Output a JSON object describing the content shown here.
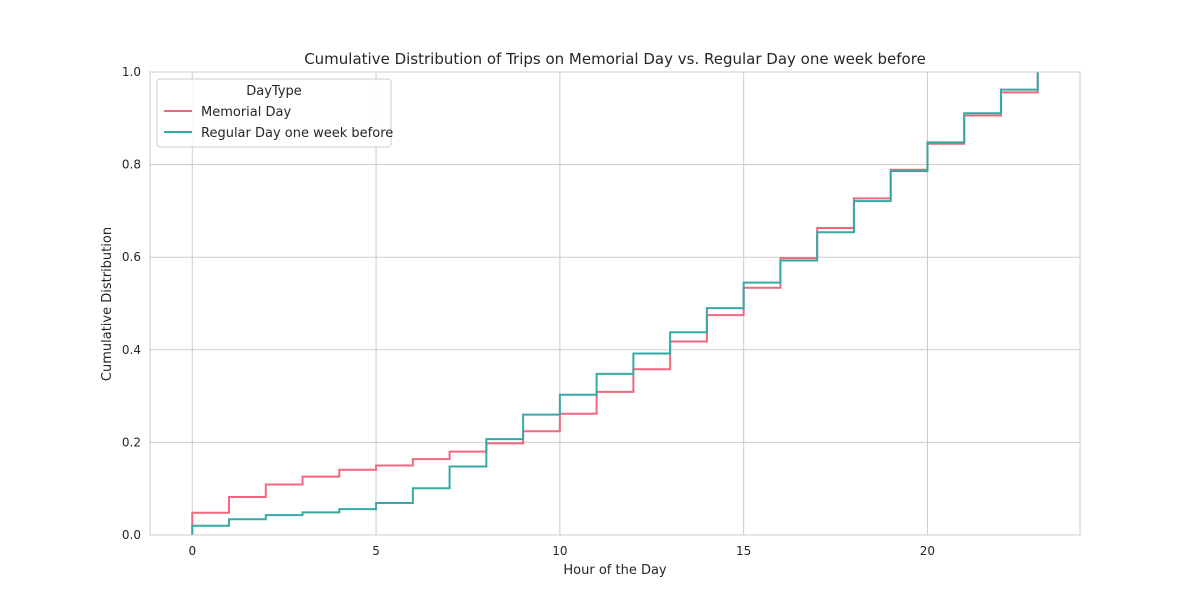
{
  "chart_data": {
    "type": "line",
    "title": "Cumulative Distribution of Trips on Memorial Day vs. Regular Day one week before",
    "xlabel": "Hour of the Day",
    "ylabel": "Cumulative Distribution",
    "xlim": [
      -1.15,
      24.15
    ],
    "ylim": [
      0,
      1.0
    ],
    "x_ticks": [
      0,
      5,
      10,
      15,
      20
    ],
    "x_tick_labels": [
      "0",
      "5",
      "10",
      "15",
      "20"
    ],
    "y_ticks": [
      0.0,
      0.2,
      0.4,
      0.6,
      0.8,
      1.0
    ],
    "y_tick_labels": [
      "0.0",
      "0.2",
      "0.4",
      "0.6",
      "0.8",
      "1.0"
    ],
    "grid": true,
    "step": "post",
    "legend": {
      "title": "DayType",
      "placement": "top-left"
    },
    "x": [
      0,
      1,
      2,
      3,
      4,
      5,
      6,
      7,
      8,
      9,
      10,
      11,
      12,
      13,
      14,
      15,
      16,
      17,
      18,
      19,
      20,
      21,
      22,
      23
    ],
    "series": [
      {
        "name": "Memorial Day",
        "color": "#f0677e",
        "values": [
          0.048,
          0.082,
          0.109,
          0.126,
          0.141,
          0.15,
          0.164,
          0.18,
          0.198,
          0.224,
          0.262,
          0.309,
          0.358,
          0.418,
          0.475,
          0.534,
          0.598,
          0.663,
          0.727,
          0.789,
          0.845,
          0.906,
          0.956,
          1.0
        ]
      },
      {
        "name": "Regular Day one week before",
        "color": "#36a9a3",
        "values": [
          0.02,
          0.034,
          0.043,
          0.049,
          0.056,
          0.069,
          0.101,
          0.148,
          0.207,
          0.26,
          0.303,
          0.348,
          0.392,
          0.438,
          0.49,
          0.545,
          0.593,
          0.654,
          0.721,
          0.786,
          0.848,
          0.911,
          0.962,
          1.0
        ]
      }
    ]
  }
}
